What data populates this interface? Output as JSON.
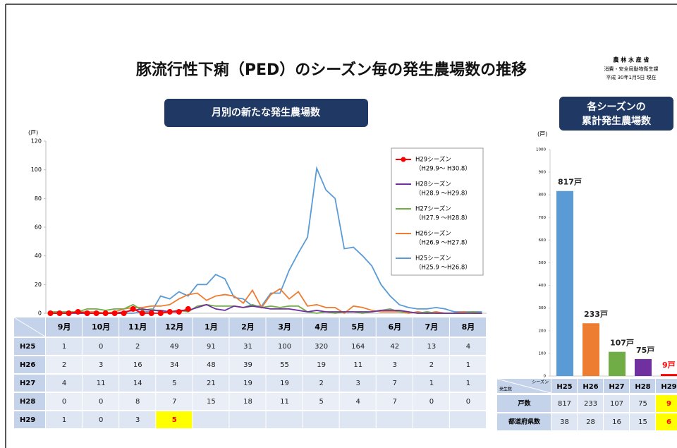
{
  "header": {
    "title": "豚流行性下痢（PED）のシーズン毎の発生農場数の推移",
    "org": "農 林 水 産 省",
    "dept": "消費・安全局動物衛生課",
    "date": "平成 30年1月5日 現在"
  },
  "chart_data": [
    {
      "type": "line",
      "title": "月別の新たな発生農場数",
      "y_unit": "(戸)",
      "ylim": [
        0,
        120
      ],
      "yticks": [
        0,
        20,
        40,
        60,
        80,
        100,
        120
      ],
      "legend": "upper right",
      "series": [
        {
          "name": "H29シーズン",
          "period": "（H29.9～ H30.8）",
          "color": "#ff0000",
          "markers": true,
          "values": [
            0,
            0,
            0,
            1,
            0,
            0,
            0,
            0,
            0,
            3,
            0,
            0,
            0,
            1,
            1,
            3,
            null,
            null,
            null,
            null,
            null,
            null,
            null,
            null,
            null,
            null,
            null,
            null,
            null,
            null,
            null,
            null,
            null,
            null,
            null,
            null,
            null,
            null,
            null,
            null,
            null,
            null,
            null,
            null,
            null,
            null,
            null,
            null
          ]
        },
        {
          "name": "H28シーズン",
          "period": "（H28.9 ～H29.8）",
          "color": "#7030a0",
          "values": [
            0,
            0,
            0,
            0,
            0,
            0,
            0,
            0,
            1,
            2,
            3,
            2,
            2,
            1,
            2,
            2,
            4,
            6,
            3,
            2,
            5,
            4,
            5,
            4,
            3,
            3,
            3,
            2,
            1,
            2,
            1,
            1,
            1,
            1,
            1,
            1,
            2,
            2,
            2,
            1,
            0,
            0,
            0,
            0,
            0,
            0,
            0,
            0
          ]
        },
        {
          "name": "H27シーズン",
          "period": "（H27.9 ～H28.8）",
          "color": "#70ad47",
          "values": [
            1,
            1,
            1,
            1,
            3,
            3,
            2,
            3,
            3,
            6,
            2,
            3,
            1,
            1,
            2,
            1,
            5,
            6,
            5,
            5,
            5,
            4,
            6,
            4,
            5,
            4,
            5,
            5,
            1,
            0,
            1,
            0,
            1,
            1,
            0,
            1,
            2,
            3,
            1,
            1,
            0,
            1,
            0,
            0,
            0,
            0,
            1,
            0
          ]
        },
        {
          "name": "H26シーズン",
          "period": "（H26.9 ～H27.8）",
          "color": "#ed7d31",
          "values": [
            0,
            1,
            0,
            1,
            1,
            1,
            0,
            1,
            3,
            4,
            4,
            5,
            5,
            6,
            10,
            13,
            14,
            9,
            12,
            13,
            12,
            7,
            16,
            4,
            13,
            17,
            10,
            15,
            5,
            6,
            4,
            4,
            0,
            5,
            4,
            2,
            1,
            1,
            1,
            0,
            1,
            0,
            1,
            0,
            0,
            1,
            0,
            0
          ]
        },
        {
          "name": "H25シーズン",
          "period": "（H25.9 ～H26.8）",
          "color": "#5b9bd5",
          "values": [
            0,
            0,
            1,
            0,
            0,
            0,
            0,
            0,
            0,
            0,
            1,
            1,
            12,
            10,
            15,
            12,
            20,
            20,
            27,
            24,
            11,
            10,
            5,
            5,
            14,
            14,
            30,
            42,
            53,
            101,
            86,
            80,
            45,
            46,
            40,
            33,
            20,
            12,
            6,
            4,
            3,
            3,
            4,
            3,
            1,
            1,
            1,
            1
          ]
        }
      ]
    },
    {
      "type": "bar",
      "title_lines": [
        "各シーズンの",
        "累計発生農場数"
      ],
      "y_unit": "(戸)",
      "ylim": [
        0,
        1000
      ],
      "yticks": [
        0,
        100,
        200,
        300,
        400,
        500,
        600,
        700,
        800,
        900,
        1000
      ],
      "categories": [
        "H25",
        "H26",
        "H27",
        "H28",
        "H29"
      ],
      "values": [
        817,
        233,
        107,
        75,
        9
      ],
      "value_labels": [
        "817戸",
        "233戸",
        "107戸",
        "75戸",
        "9戸"
      ],
      "colors": [
        "#5b9bd5",
        "#ed7d31",
        "#70ad47",
        "#7030a0",
        "#ff0000"
      ]
    }
  ],
  "month_table": {
    "columns": [
      "9月",
      "10月",
      "11月",
      "12月",
      "1月",
      "2月",
      "3月",
      "4月",
      "5月",
      "6月",
      "7月",
      "8月"
    ],
    "rows": [
      {
        "label": "H25",
        "values": [
          1,
          0,
          2,
          49,
          91,
          31,
          100,
          320,
          164,
          42,
          13,
          4
        ]
      },
      {
        "label": "H26",
        "values": [
          2,
          3,
          16,
          34,
          48,
          39,
          55,
          19,
          11,
          3,
          2,
          1
        ]
      },
      {
        "label": "H27",
        "values": [
          4,
          11,
          14,
          5,
          21,
          19,
          19,
          2,
          3,
          7,
          1,
          1
        ]
      },
      {
        "label": "H28",
        "values": [
          0,
          0,
          8,
          7,
          15,
          18,
          11,
          5,
          4,
          7,
          0,
          0
        ]
      },
      {
        "label": "H29",
        "values": [
          1,
          0,
          3,
          5
        ]
      }
    ],
    "highlight": {
      "row": 4,
      "col": 3
    }
  },
  "season_table": {
    "corner": [
      "シーズン",
      "発生数"
    ],
    "count_label": "戸数",
    "pref_label": "都道府県数",
    "pref_values": [
      38,
      28,
      16,
      15,
      6
    ],
    "highlight_col": 4
  }
}
